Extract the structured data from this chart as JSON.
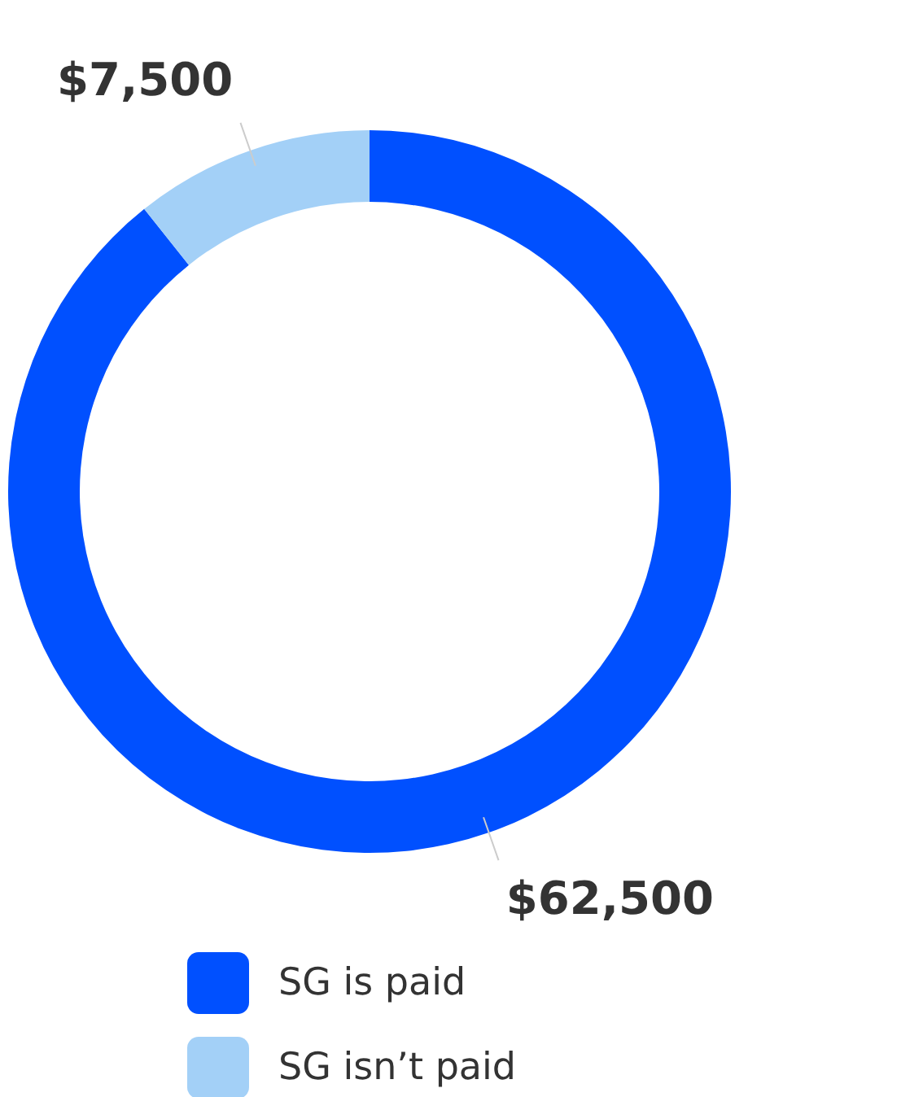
{
  "chart_data": {
    "type": "donut",
    "categories": [
      "SG is paid",
      "SG isn’t paid"
    ],
    "values": [
      62500,
      7500
    ],
    "colors": [
      "#0050ff",
      "#a3d0f7"
    ],
    "value_labels": [
      "$62,500",
      "$7,500"
    ],
    "legend": "bottom"
  }
}
